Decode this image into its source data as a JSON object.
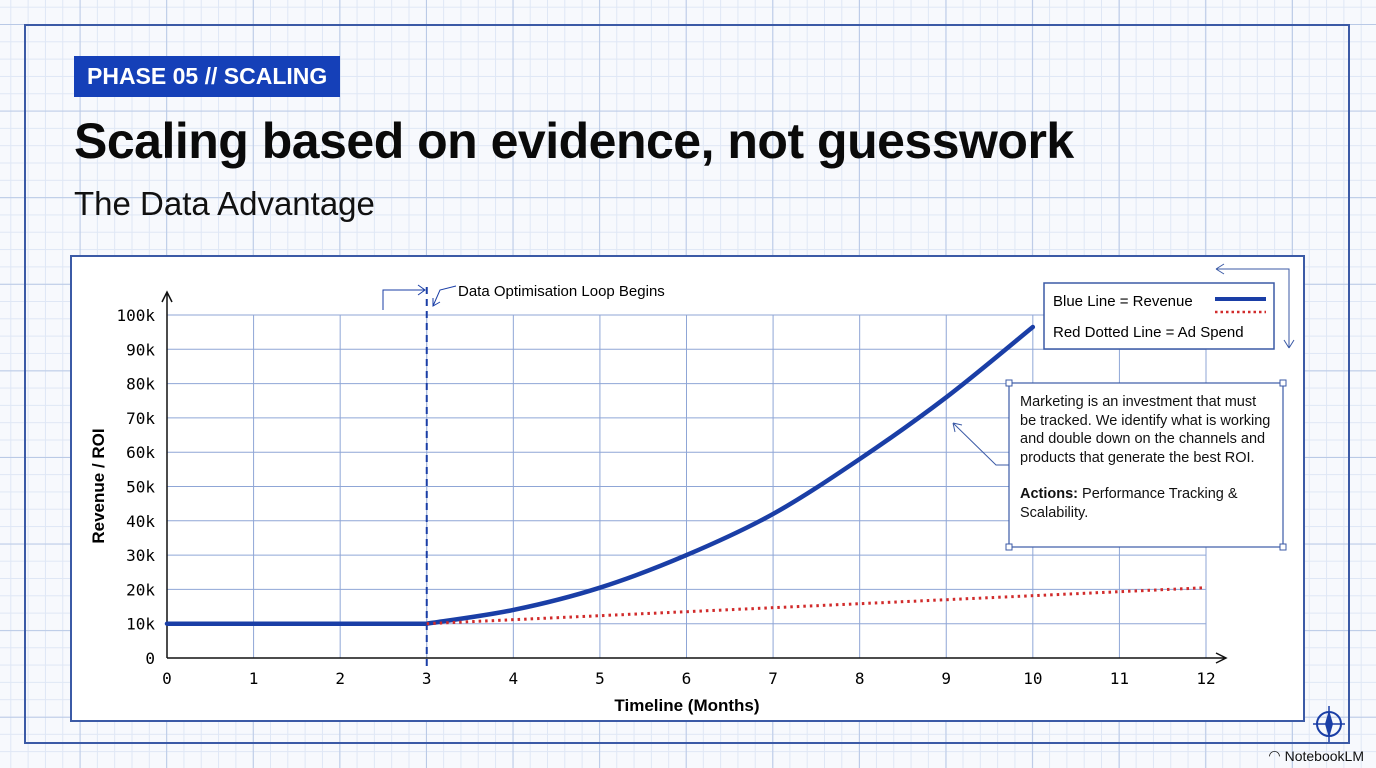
{
  "header": {
    "badge": "PHASE 05 // SCALING",
    "title": "Scaling based on evidence, not guesswork",
    "subtitle": "The Data Advantage"
  },
  "chart_data": {
    "type": "line",
    "xlabel": "Timeline (Months)",
    "ylabel": "Revenue / ROI",
    "xlim": [
      0,
      12
    ],
    "ylim": [
      0,
      100000
    ],
    "x_ticks": [
      "0",
      "1",
      "2",
      "3",
      "4",
      "5",
      "6",
      "7",
      "8",
      "9",
      "10",
      "11",
      "12"
    ],
    "y_ticks": [
      "0",
      "10k",
      "20k",
      "30k",
      "40k",
      "50k",
      "60k",
      "70k",
      "80k",
      "90k",
      "100k"
    ],
    "grid": true,
    "series": [
      {
        "name": "Revenue",
        "color": "#1a3ea6",
        "style": "solid",
        "x": [
          0,
          1,
          2,
          3,
          4,
          5,
          6,
          7,
          8,
          9,
          10
        ],
        "values": [
          10000,
          10000,
          10000,
          10000,
          14000,
          20500,
          30000,
          42000,
          58000,
          76000,
          96500
        ]
      },
      {
        "name": "Ad Spend",
        "color": "#d12b2b",
        "style": "dotted",
        "x": [
          3,
          12
        ],
        "values": [
          10000,
          20500
        ]
      }
    ],
    "annotations": {
      "marker_x": 3,
      "marker_label": "Data Optimisation Loop Begins"
    },
    "legend": {
      "placement": "top-right",
      "items": [
        "Blue Line = Revenue",
        "Red Dotted Line = Ad Spend"
      ]
    }
  },
  "callout": {
    "body": "Marketing is an investment that must be tracked. We identify what is working and double down on the channels and products that generate the best ROI.",
    "actions_label": "Actions:",
    "actions_text": " Performance Tracking & Scalability."
  },
  "brand": "NotebookLM"
}
